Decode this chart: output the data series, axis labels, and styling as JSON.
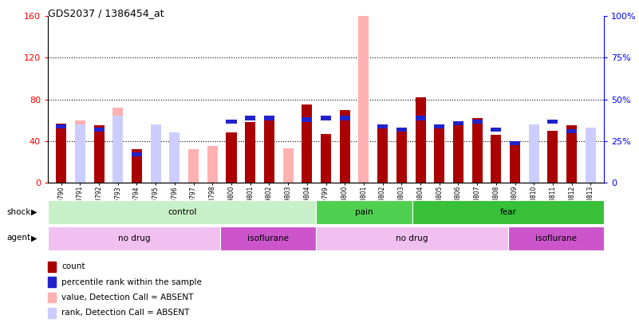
{
  "title": "GDS2037 / 1386454_at",
  "samples": [
    "GSM30790",
    "GSM30791",
    "GSM30792",
    "GSM30793",
    "GSM30794",
    "GSM30795",
    "GSM30796",
    "GSM30797",
    "GSM30798",
    "GSM99800",
    "GSM99801",
    "GSM99802",
    "GSM99803",
    "GSM99804",
    "GSM30799",
    "GSM30800",
    "GSM30801",
    "GSM30802",
    "GSM30803",
    "GSM30804",
    "GSM30805",
    "GSM30806",
    "GSM30807",
    "GSM30808",
    "GSM30809",
    "GSM30810",
    "GSM30811",
    "GSM30812",
    "GSM30813"
  ],
  "count": [
    57,
    0,
    55,
    0,
    32,
    0,
    0,
    0,
    0,
    48,
    58,
    60,
    0,
    75,
    47,
    70,
    0,
    53,
    50,
    82,
    55,
    57,
    62,
    46,
    38,
    0,
    50,
    55,
    0
  ],
  "percentile_rank": [
    35,
    0,
    33,
    0,
    18,
    0,
    0,
    0,
    0,
    38,
    40,
    40,
    0,
    39,
    40,
    40,
    0,
    35,
    33,
    40,
    35,
    37,
    38,
    33,
    25,
    0,
    38,
    32,
    0
  ],
  "absent_value": [
    55,
    60,
    0,
    72,
    0,
    35,
    30,
    32,
    35,
    0,
    0,
    0,
    33,
    0,
    0,
    0,
    165,
    0,
    0,
    0,
    0,
    0,
    0,
    0,
    0,
    45,
    0,
    0,
    46
  ],
  "absent_rank": [
    0,
    35,
    0,
    40,
    0,
    35,
    30,
    0,
    0,
    0,
    0,
    0,
    0,
    0,
    0,
    43,
    0,
    0,
    0,
    0,
    0,
    0,
    0,
    0,
    0,
    35,
    0,
    0,
    33
  ],
  "shock_groups": [
    {
      "label": "control",
      "start": 0,
      "end": 14,
      "color": "#c8f0c8"
    },
    {
      "label": "pain",
      "start": 14,
      "end": 19,
      "color": "#50d050"
    },
    {
      "label": "fear",
      "start": 19,
      "end": 29,
      "color": "#38c038"
    }
  ],
  "agent_groups": [
    {
      "label": "no drug",
      "start": 0,
      "end": 9,
      "color": "#f0c0f0"
    },
    {
      "label": "isoflurane",
      "start": 9,
      "end": 14,
      "color": "#cc55cc"
    },
    {
      "label": "no drug",
      "start": 14,
      "end": 24,
      "color": "#f0c0f0"
    },
    {
      "label": "isoflurane",
      "start": 24,
      "end": 29,
      "color": "#cc55cc"
    }
  ],
  "ylim_left": [
    0,
    160
  ],
  "ylim_right": [
    0,
    100
  ],
  "yticks_left": [
    0,
    40,
    80,
    120,
    160
  ],
  "yticks_right": [
    0,
    25,
    50,
    75,
    100
  ],
  "count_color": "#aa0000",
  "percentile_color": "#2222cc",
  "absent_value_color": "#ffb0b0",
  "absent_rank_color": "#ccccff",
  "bar_width": 0.55
}
